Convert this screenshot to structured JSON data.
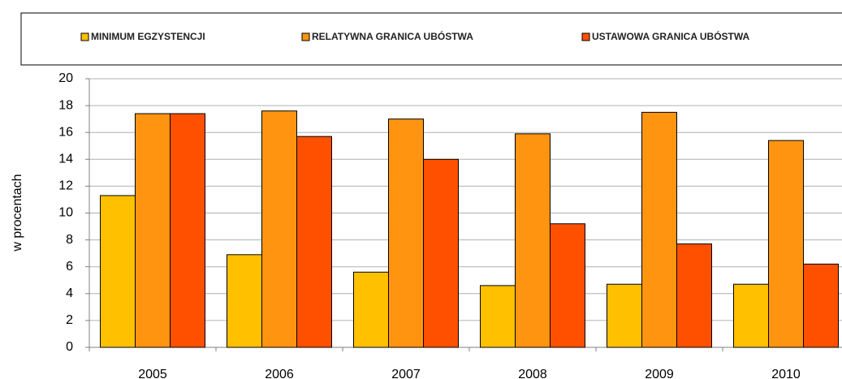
{
  "chart_data": {
    "type": "bar",
    "y_label": "w procentach",
    "categories": [
      "2005",
      "2006",
      "2007",
      "2008",
      "2009",
      "2010"
    ],
    "series": [
      {
        "name": "MINIMUM EGZYSTENCJI",
        "color": "#FFC000",
        "values": [
          11.3,
          6.9,
          5.6,
          4.6,
          4.7,
          4.7
        ]
      },
      {
        "name": "RELATYWNA GRANICA UBÓSTWA",
        "color": "#FF9410",
        "values": [
          17.4,
          17.6,
          17.0,
          15.9,
          17.5,
          15.4
        ]
      },
      {
        "name": "USTAWOWA GRANICA UBÓSTWA",
        "color": "#FF5000",
        "values": [
          17.4,
          15.7,
          14.0,
          9.2,
          7.7,
          6.2
        ]
      }
    ],
    "ylim": [
      0,
      20
    ],
    "yticks": [
      0,
      2,
      4,
      6,
      8,
      10,
      12,
      14,
      16,
      18,
      20
    ],
    "grid": true,
    "legend": "top"
  }
}
